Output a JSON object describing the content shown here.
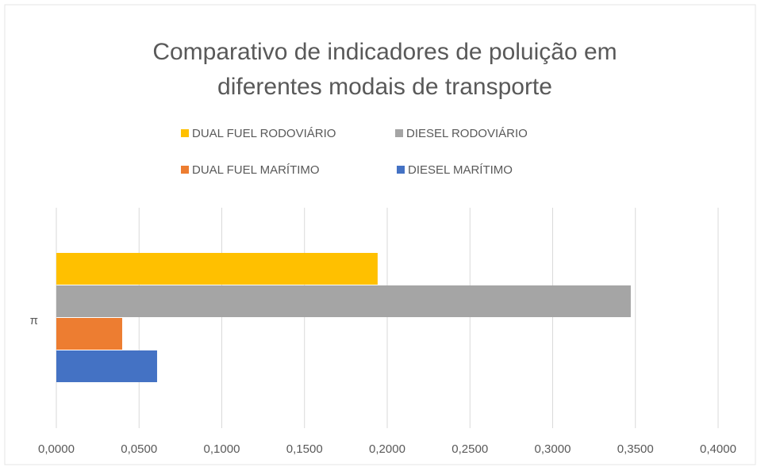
{
  "chart_data": {
    "type": "bar",
    "orientation": "horizontal",
    "title": "Comparativo de indicadores de poluição em diferentes modais de transporte",
    "categories": [
      "π"
    ],
    "series": [
      {
        "name": "DUAL FUEL RODOVIÁRIO",
        "color": "#ffc000",
        "values": [
          0.1942
        ]
      },
      {
        "name": "DIESEL RODOVIÁRIO",
        "color": "#a5a5a5",
        "values": [
          0.3472
        ]
      },
      {
        "name": "DUAL FUEL MARÍTIMO",
        "color": "#ed7d31",
        "values": [
          0.0398
        ]
      },
      {
        "name": "DIESEL MARÍTIMO",
        "color": "#4472c4",
        "values": [
          0.0609
        ]
      }
    ],
    "xlim": [
      0,
      0.4
    ],
    "xticks": [
      {
        "value": 0,
        "label": "0,0000"
      },
      {
        "value": 0.05,
        "label": "0,0500"
      },
      {
        "value": 0.1,
        "label": "0,1000"
      },
      {
        "value": 0.15,
        "label": "0,1500"
      },
      {
        "value": 0.2,
        "label": "0,2000"
      },
      {
        "value": 0.25,
        "label": "0,2500"
      },
      {
        "value": 0.3,
        "label": "0,3000"
      },
      {
        "value": 0.35,
        "label": "0,3500"
      },
      {
        "value": 0.4,
        "label": "0,4000"
      }
    ],
    "grid": true,
    "legend": "top"
  }
}
